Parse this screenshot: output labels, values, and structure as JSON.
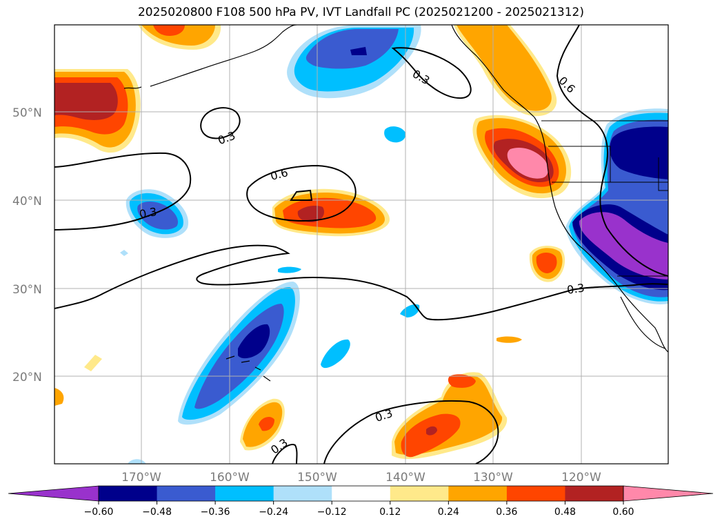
{
  "title": "2025020800 F108 500 hPa PV, IVT Landfall PC (2025021200 - 2025021312)",
  "lat_labels": [
    "50°N",
    "40°N",
    "30°N",
    "20°N"
  ],
  "lon_labels": [
    "170°W",
    "160°W",
    "150°W",
    "140°W",
    "130°W",
    "120°W"
  ],
  "contour_labels": [
    "0.3",
    "0.6",
    "0.3",
    "0.6",
    "0.3",
    "0.3",
    "0.3",
    "0.3"
  ],
  "colorbar": {
    "ticks": [
      "−0.60",
      "−0.48",
      "−0.36",
      "−0.24",
      "−0.12",
      "0.12",
      "0.24",
      "0.36",
      "0.48",
      "0.60"
    ],
    "colors": [
      "#9932cc",
      "#00008b",
      "#3a5bd0",
      "#00bfff",
      "#afe0fa",
      "#ffffff",
      "#ffe98a",
      "#ffa500",
      "#ff4500",
      "#b22222",
      "#ff88aa"
    ]
  }
}
